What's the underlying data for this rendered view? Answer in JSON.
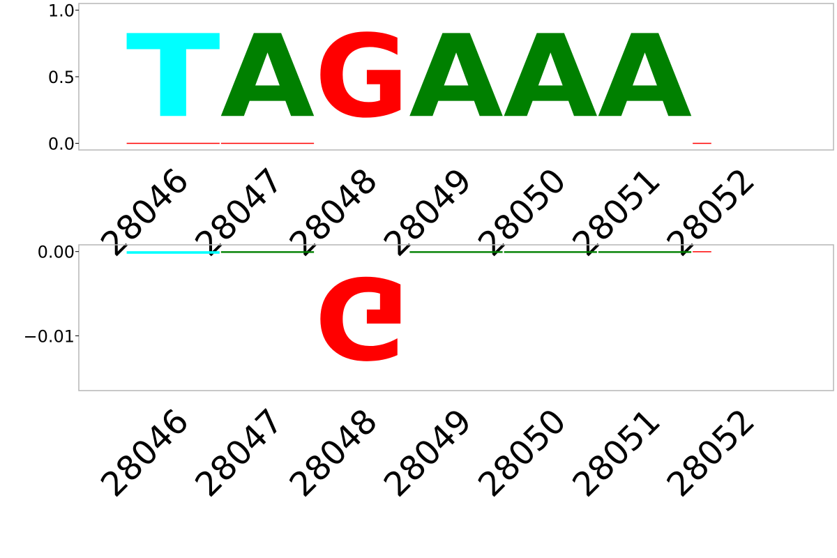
{
  "chart_data": [
    {
      "type": "sequence-logo",
      "panel": "positive",
      "x": [
        28046,
        28047,
        28048,
        28049,
        28050,
        28051,
        28052
      ],
      "xlim": [
        28045,
        28053
      ],
      "ylim": [
        -0.05,
        1.05
      ],
      "yticks": [
        {
          "value": 1.0,
          "label": "1.0"
        },
        {
          "value": 0.5,
          "label": "0.5"
        },
        {
          "value": 0.0,
          "label": "0.0"
        }
      ],
      "xtick_labels": [
        "28046",
        "28047",
        "28048",
        "28049",
        "28050",
        "28051",
        "28052"
      ],
      "letters": [
        {
          "letter": "T",
          "x": 28046,
          "value": 1.0,
          "color": "#00ffff"
        },
        {
          "letter": "A",
          "x": 28047,
          "value": 1.0,
          "color": "#008000"
        },
        {
          "letter": "G",
          "x": 28048,
          "value": 1.0,
          "color": "#ff0000"
        },
        {
          "letter": "A",
          "x": 28049,
          "value": 1.0,
          "color": "#008000"
        },
        {
          "letter": "A",
          "x": 28050,
          "value": 1.0,
          "color": "#008000"
        },
        {
          "letter": "A",
          "x": 28051,
          "value": 1.0,
          "color": "#008000"
        }
      ],
      "traces": [
        {
          "x": 28046,
          "value": 0.001,
          "color": "#ff0000"
        },
        {
          "x": 28047,
          "value": 0.001,
          "color": "#ff0000"
        },
        {
          "x": 28052,
          "value": 0.001,
          "color": "#ff0000"
        }
      ]
    },
    {
      "type": "sequence-logo",
      "panel": "negative",
      "x": [
        28046,
        28047,
        28048,
        28049,
        28050,
        28051,
        28052
      ],
      "xlim": [
        28045,
        28053
      ],
      "ylim": [
        -0.0165,
        0.0008
      ],
      "yticks": [
        {
          "value": 0.0,
          "label": "0.00"
        },
        {
          "value": -0.01,
          "label": "−0.01"
        }
      ],
      "xtick_labels": [
        "28046",
        "28047",
        "28048",
        "28049",
        "28050",
        "28051",
        "28052"
      ],
      "letters": [
        {
          "letter": "G",
          "x": 28048,
          "value": -0.0155,
          "color": "#ff0000",
          "flipped": true
        }
      ],
      "traces": [
        {
          "x": 28046,
          "value": -0.0003,
          "color": "#00ffff"
        },
        {
          "x": 28047,
          "value": -0.0002,
          "color": "#008000"
        },
        {
          "x": 28049,
          "value": -0.0002,
          "color": "#008000"
        },
        {
          "x": 28050,
          "value": -0.0002,
          "color": "#008000"
        },
        {
          "x": 28051,
          "value": -0.0002,
          "color": "#008000"
        },
        {
          "x": 28052,
          "value": -0.0001,
          "color": "#ff0000"
        }
      ]
    }
  ]
}
